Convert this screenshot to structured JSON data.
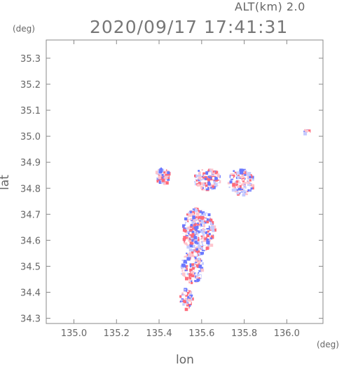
{
  "header": {
    "altitude_label": "ALT(km) 2.0",
    "timestamp": "2020/09/17 17:41:31"
  },
  "axes": {
    "x_label": "lon",
    "y_label": "lat",
    "x_unit": "(deg)",
    "y_unit": "(deg)",
    "x_ticks": [
      "135.0",
      "135.2",
      "135.4",
      "135.6",
      "135.8",
      "136.0"
    ],
    "y_ticks": [
      "35.3",
      "35.2",
      "35.1",
      "35.0",
      "34.9",
      "34.8",
      "34.7",
      "34.6",
      "34.5",
      "34.4",
      "34.3"
    ]
  },
  "chart_data": {
    "type": "heatmap",
    "xlim": [
      134.87,
      136.17
    ],
    "ylim": [
      34.28,
      35.37
    ],
    "grid": false,
    "colors": {
      "positive": "#ff6a7a",
      "negative": "#6a78ff",
      "light_positive": "#ffc4cc",
      "light_negative": "#c4cbff"
    },
    "regions": [
      {
        "lon": 135.58,
        "lat": 34.64,
        "lon_r": 0.075,
        "lat_r": 0.09
      },
      {
        "lon": 135.55,
        "lat": 34.5,
        "lon_r": 0.05,
        "lat_r": 0.06
      },
      {
        "lon": 135.62,
        "lat": 34.84,
        "lon_r": 0.06,
        "lat_r": 0.04
      },
      {
        "lon": 135.78,
        "lat": 34.83,
        "lon_r": 0.06,
        "lat_r": 0.05
      },
      {
        "lon": 135.41,
        "lat": 34.85,
        "lon_r": 0.035,
        "lat_r": 0.03
      },
      {
        "lon": 135.52,
        "lat": 34.38,
        "lon_r": 0.03,
        "lat_r": 0.04
      },
      {
        "lon": 136.09,
        "lat": 35.02,
        "lon_r": 0.015,
        "lat_r": 0.01
      }
    ]
  }
}
